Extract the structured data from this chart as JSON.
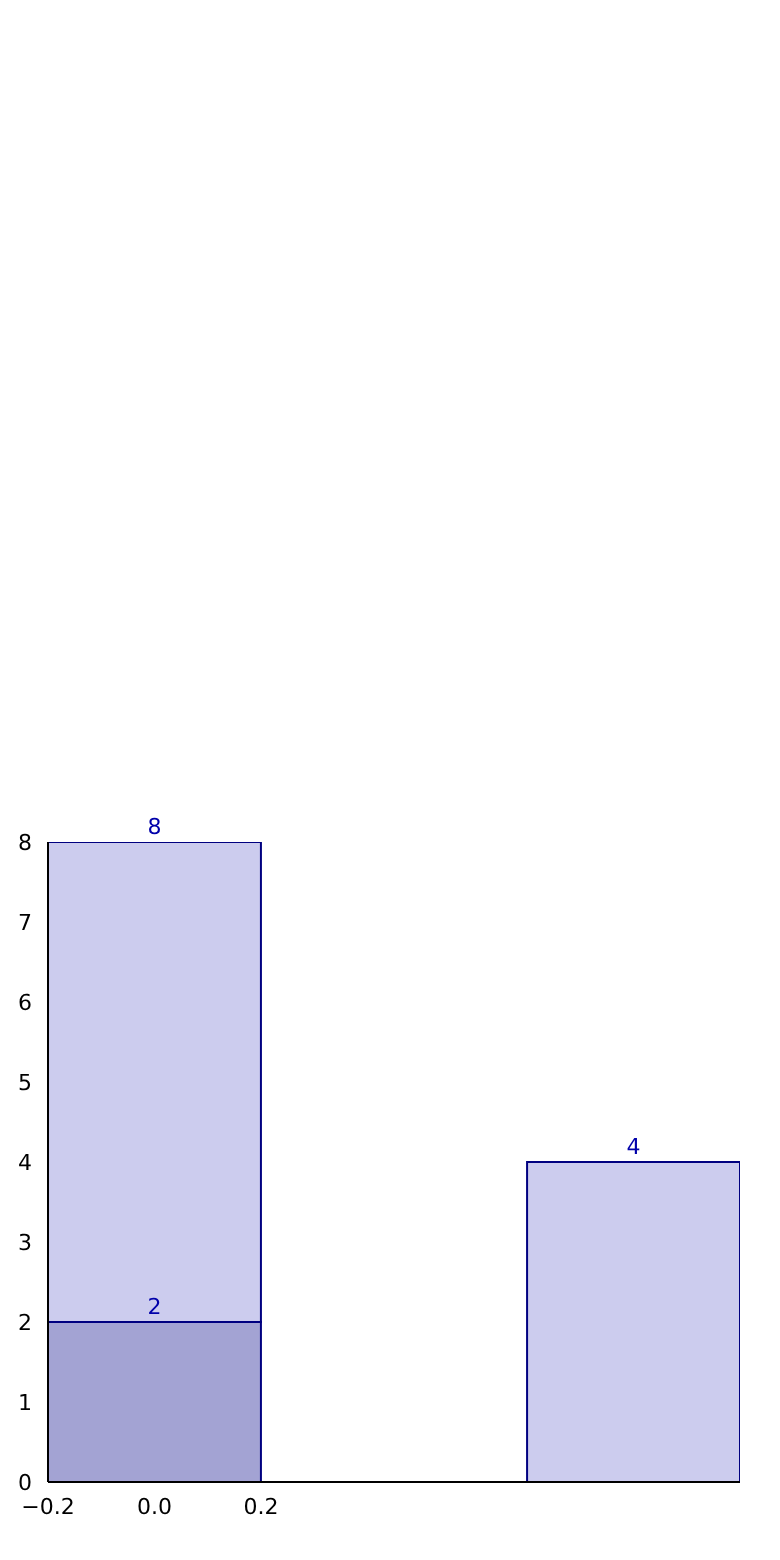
{
  "chart_data": {
    "type": "bar",
    "x": [
      0,
      0.9
    ],
    "stacked": true,
    "series": [
      {
        "color": "#a3a3d3",
        "values": [
          2,
          null
        ],
        "value_labels": [
          "2",
          null
        ]
      },
      {
        "color": "#ccccee",
        "values": [
          6,
          4
        ]
      }
    ],
    "totals": [
      "8",
      "4"
    ],
    "xlim": [
      -0.2,
      1.1
    ],
    "xticks": [
      {
        "value": -0.2,
        "label": "−0.2"
      },
      {
        "value": 0,
        "label": "0.0"
      },
      {
        "value": 0.2,
        "label": "0.2"
      }
    ],
    "ylim": [
      0,
      8
    ],
    "yticks": [
      0,
      1,
      2,
      3,
      4,
      5,
      6,
      7,
      8
    ]
  }
}
